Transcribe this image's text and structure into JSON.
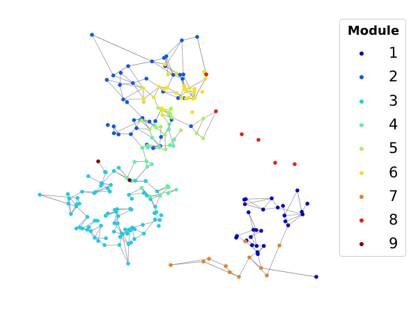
{
  "legend": {
    "title": "Module",
    "items": [
      {
        "label": "1",
        "color": "#0000c8"
      },
      {
        "label": "2",
        "color": "#0a5ae8"
      },
      {
        "label": "3",
        "color": "#1ecbe8"
      },
      {
        "label": "4",
        "color": "#5ef0a0"
      },
      {
        "label": "5",
        "color": "#a8f25a"
      },
      {
        "label": "6",
        "color": "#f0e21e"
      },
      {
        "label": "7",
        "color": "#ee7e20"
      },
      {
        "label": "8",
        "color": "#e81e12"
      },
      {
        "label": "9",
        "color": "#7a0000"
      }
    ]
  },
  "graph": {
    "node_modules": [
      1,
      1,
      1,
      1,
      1,
      1,
      1,
      1,
      1,
      1,
      1,
      1,
      1,
      1,
      1,
      1,
      1,
      1,
      1,
      1,
      1,
      1,
      1,
      1,
      1,
      1,
      1,
      1,
      1,
      1,
      1,
      1,
      2,
      2,
      2,
      2,
      2,
      2,
      2,
      2,
      2,
      2,
      2,
      2,
      2,
      2,
      2,
      2,
      2,
      2,
      2,
      2,
      2,
      2,
      2,
      2,
      2,
      2,
      2,
      2,
      2,
      2,
      2,
      2,
      2,
      2,
      2,
      2,
      2,
      2,
      3,
      3,
      3,
      3,
      3,
      3,
      3,
      3,
      3,
      3,
      3,
      3,
      3,
      3,
      3,
      3,
      3,
      3,
      3,
      3,
      3,
      3,
      3,
      3,
      3,
      3,
      3,
      3,
      3,
      3,
      3,
      3,
      3,
      3,
      3,
      3,
      3,
      3,
      3,
      3,
      3,
      3,
      3,
      3,
      3,
      3,
      3,
      3,
      3,
      3,
      3,
      3,
      3,
      3,
      3,
      3,
      3,
      3,
      3,
      3,
      3,
      3,
      3,
      3,
      3,
      3,
      3,
      3,
      3,
      3,
      3,
      3,
      3,
      3,
      3,
      3,
      3,
      4,
      4,
      4,
      4,
      4,
      4,
      4,
      4,
      4,
      4,
      4,
      4,
      4,
      4,
      4,
      4,
      4,
      4,
      4,
      4,
      4,
      4,
      4,
      4,
      5,
      5,
      5,
      5,
      5,
      5,
      5,
      5,
      5,
      5,
      5,
      5,
      5,
      5,
      5,
      5,
      5,
      6,
      6,
      6,
      6,
      6,
      6,
      6,
      6,
      6,
      6,
      6,
      6,
      6,
      6,
      6,
      6,
      6,
      6,
      6,
      6,
      6,
      6,
      6,
      6,
      6,
      6,
      6,
      6,
      7,
      7,
      7,
      7,
      7,
      7,
      7,
      7,
      7,
      7,
      7,
      8,
      8,
      8,
      8,
      8,
      8,
      8,
      9,
      9
    ]
  }
}
